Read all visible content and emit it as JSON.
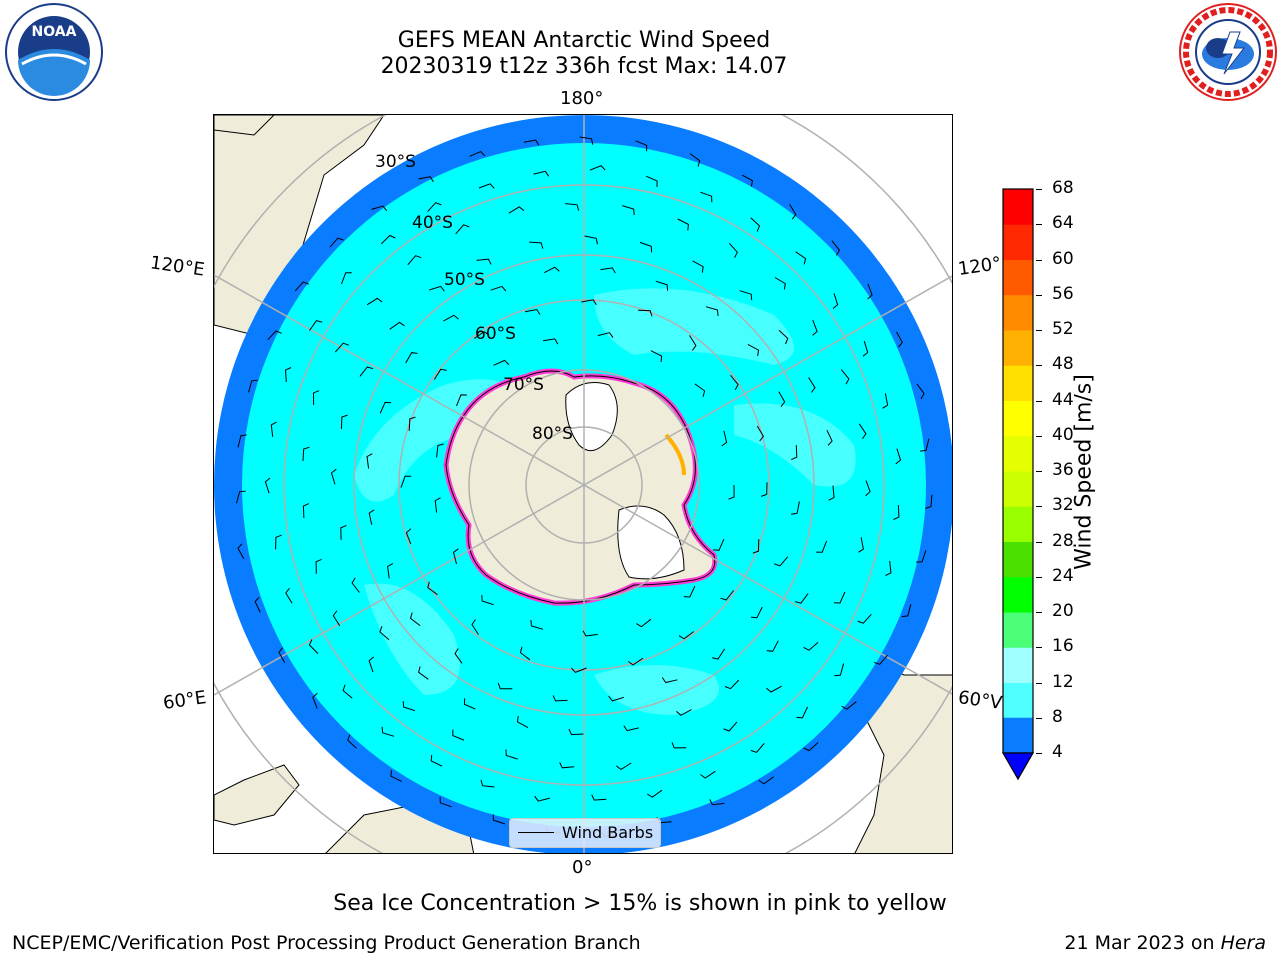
{
  "header": {
    "title_line1": "GEFS MEAN Antarctic Wind Speed",
    "title_line2": "20230319 t12z 336h fcst   Max: 14.07"
  },
  "logos": {
    "left": {
      "text": "NOAA",
      "ring_text": "NATIONAL OCEANIC AND ATMOSPHERIC ADMINISTRATION · U.S. DEPARTMENT OF COMMERCE",
      "icon": "noaa-logo-icon"
    },
    "right": {
      "ring_text": "NATIONAL WEATHER SERVICE",
      "icon": "nws-logo-icon"
    }
  },
  "map": {
    "longitude_labels": {
      "top": "180°",
      "bottom": "0°",
      "upper_left": "120°E",
      "upper_right": "120°",
      "lower_left": "60°E",
      "lower_right": "60°V"
    },
    "latitude_labels": [
      "30°S",
      "40°S",
      "50°S",
      "60°S",
      "70°S",
      "80°S"
    ],
    "legend_label": "Wind Barbs",
    "colors": {
      "land": "#efecd9",
      "ocean_low": "#0a7cff",
      "ocean_mid": "#00ffff",
      "ocean_high": "#50ffff",
      "ice_edge": "#ff3bd6",
      "ice_inner": "#ffb000",
      "grid": "#b0b0b0"
    }
  },
  "colorbar": {
    "label": "Wind Speed [m/s]",
    "ticks": [
      "4",
      "8",
      "12",
      "16",
      "20",
      "24",
      "28",
      "32",
      "36",
      "40",
      "44",
      "48",
      "52",
      "56",
      "60",
      "64",
      "68"
    ],
    "colors": [
      "#0a7cff",
      "#00ffff",
      "#50ffff",
      "#a0ffff",
      "#4cff78",
      "#00ff00",
      "#4ce000",
      "#99ff00",
      "#ccff00",
      "#e6ff00",
      "#ffff00",
      "#ffe000",
      "#ffb000",
      "#ff8c00",
      "#ff5a00",
      "#ff2800",
      "#ff0000"
    ],
    "under_color": "#0000ff"
  },
  "footer": {
    "note": "Sea Ice Concentration > 15% is shown in pink to yellow",
    "credit": "NCEP/EMC/Verification Post Processing Product Generation Branch",
    "date": "21 Mar 2023 on ",
    "machine": "Hera"
  }
}
